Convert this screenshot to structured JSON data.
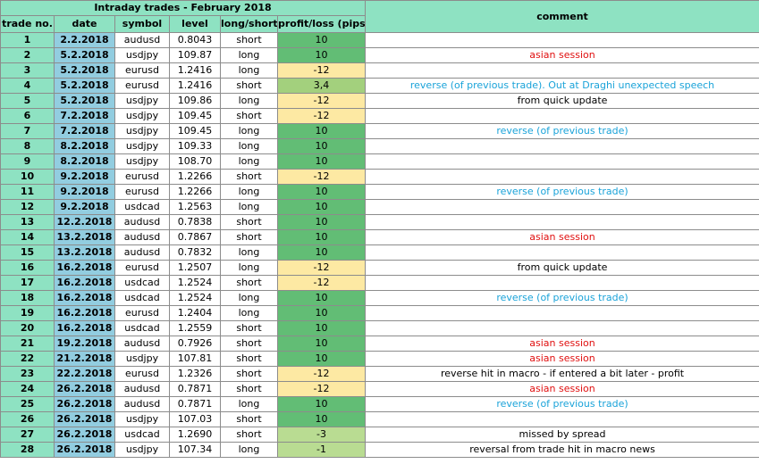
{
  "title": "Intraday trades - February 2018",
  "headers": {
    "trade_no": "trade no.",
    "date": "date",
    "symbol": "symbol",
    "level": "level",
    "long_short": "long/short",
    "profit_loss": "profit/loss (pips)",
    "comment": "comment"
  },
  "colors": {
    "header_bg": "#8ee2c2",
    "date_bg": "#92cde0",
    "win_bg": "#62bd75",
    "loss_bg": "#fde9a3",
    "partial_bg": "#a3d07d",
    "comment_red": "#e01010",
    "comment_blue": "#1aa3d9"
  },
  "rows": [
    {
      "no": "1",
      "date": "2.2.2018",
      "symbol": "audusd",
      "level": "0.8043",
      "side": "short",
      "pl": "10",
      "result": "win",
      "comment": "",
      "comment_color": "black"
    },
    {
      "no": "2",
      "date": "5.2.2018",
      "symbol": "usdjpy",
      "level": "109.87",
      "side": "long",
      "pl": "10",
      "result": "win",
      "comment": "asian session",
      "comment_color": "red"
    },
    {
      "no": "3",
      "date": "5.2.2018",
      "symbol": "eurusd",
      "level": "1.2416",
      "side": "long",
      "pl": "-12",
      "result": "loss",
      "comment": "",
      "comment_color": "black"
    },
    {
      "no": "4",
      "date": "5.2.2018",
      "symbol": "eurusd",
      "level": "1.2416",
      "side": "short",
      "pl": "3,4",
      "result": "partial",
      "comment": "reverse (of previous trade). Out at Draghi unexpected speech",
      "comment_color": "blue"
    },
    {
      "no": "5",
      "date": "5.2.2018",
      "symbol": "usdjpy",
      "level": "109.86",
      "side": "long",
      "pl": "-12",
      "result": "loss",
      "comment": "from quick update",
      "comment_color": "black"
    },
    {
      "no": "6",
      "date": "7.2.2018",
      "symbol": "usdjpy",
      "level": "109.45",
      "side": "short",
      "pl": "-12",
      "result": "loss",
      "comment": "",
      "comment_color": "black"
    },
    {
      "no": "7",
      "date": "7.2.2018",
      "symbol": "usdjpy",
      "level": "109.45",
      "side": "long",
      "pl": "10",
      "result": "win",
      "comment": "reverse (of previous trade)",
      "comment_color": "blue"
    },
    {
      "no": "8",
      "date": "8.2.2018",
      "symbol": "usdjpy",
      "level": "109.33",
      "side": "long",
      "pl": "10",
      "result": "win",
      "comment": "",
      "comment_color": "black"
    },
    {
      "no": "9",
      "date": "8.2.2018",
      "symbol": "usdjpy",
      "level": "108.70",
      "side": "long",
      "pl": "10",
      "result": "win",
      "comment": "",
      "comment_color": "black"
    },
    {
      "no": "10",
      "date": "9.2.2018",
      "symbol": "eurusd",
      "level": "1.2266",
      "side": "short",
      "pl": "-12",
      "result": "loss",
      "comment": "",
      "comment_color": "black"
    },
    {
      "no": "11",
      "date": "9.2.2018",
      "symbol": "eurusd",
      "level": "1.2266",
      "side": "long",
      "pl": "10",
      "result": "win",
      "comment": "reverse (of previous trade)",
      "comment_color": "blue"
    },
    {
      "no": "12",
      "date": "9.2.2018",
      "symbol": "usdcad",
      "level": "1.2563",
      "side": "long",
      "pl": "10",
      "result": "win",
      "comment": "",
      "comment_color": "black"
    },
    {
      "no": "13",
      "date": "12.2.2018",
      "symbol": "audusd",
      "level": "0.7838",
      "side": "short",
      "pl": "10",
      "result": "win",
      "comment": "",
      "comment_color": "black"
    },
    {
      "no": "14",
      "date": "13.2.2018",
      "symbol": "audusd",
      "level": "0.7867",
      "side": "short",
      "pl": "10",
      "result": "win",
      "comment": "asian session",
      "comment_color": "red"
    },
    {
      "no": "15",
      "date": "13.2.2018",
      "symbol": "audusd",
      "level": "0.7832",
      "side": "long",
      "pl": "10",
      "result": "win",
      "comment": "",
      "comment_color": "black"
    },
    {
      "no": "16",
      "date": "16.2.2018",
      "symbol": "eurusd",
      "level": "1.2507",
      "side": "long",
      "pl": "-12",
      "result": "loss",
      "comment": "from quick update",
      "comment_color": "black"
    },
    {
      "no": "17",
      "date": "16.2.2018",
      "symbol": "usdcad",
      "level": "1.2524",
      "side": "short",
      "pl": "-12",
      "result": "loss",
      "comment": "",
      "comment_color": "black"
    },
    {
      "no": "18",
      "date": "16.2.2018",
      "symbol": "usdcad",
      "level": "1.2524",
      "side": "long",
      "pl": "10",
      "result": "win",
      "comment": "reverse (of previous trade)",
      "comment_color": "blue"
    },
    {
      "no": "19",
      "date": "16.2.2018",
      "symbol": "eurusd",
      "level": "1.2404",
      "side": "long",
      "pl": "10",
      "result": "win",
      "comment": "",
      "comment_color": "black"
    },
    {
      "no": "20",
      "date": "16.2.2018",
      "symbol": "usdcad",
      "level": "1.2559",
      "side": "short",
      "pl": "10",
      "result": "win",
      "comment": "",
      "comment_color": "black"
    },
    {
      "no": "21",
      "date": "19.2.2018",
      "symbol": "audusd",
      "level": "0.7926",
      "side": "short",
      "pl": "10",
      "result": "win",
      "comment": "asian session",
      "comment_color": "red"
    },
    {
      "no": "22",
      "date": "21.2.2018",
      "symbol": "usdjpy",
      "level": "107.81",
      "side": "short",
      "pl": "10",
      "result": "win",
      "comment": "asian session",
      "comment_color": "red"
    },
    {
      "no": "23",
      "date": "22.2.2018",
      "symbol": "eurusd",
      "level": "1.2326",
      "side": "short",
      "pl": "-12",
      "result": "loss",
      "comment": "reverse hit in macro - if entered a bit later - profit",
      "comment_color": "black"
    },
    {
      "no": "24",
      "date": "26.2.2018",
      "symbol": "audusd",
      "level": "0.7871",
      "side": "short",
      "pl": "-12",
      "result": "loss",
      "comment": "asian session",
      "comment_color": "red"
    },
    {
      "no": "25",
      "date": "26.2.2018",
      "symbol": "audusd",
      "level": "0.7871",
      "side": "long",
      "pl": "10",
      "result": "win",
      "comment": "reverse (of previous trade)",
      "comment_color": "blue"
    },
    {
      "no": "26",
      "date": "26.2.2018",
      "symbol": "usdjpy",
      "level": "107.03",
      "side": "short",
      "pl": "10",
      "result": "win",
      "comment": "",
      "comment_color": "black"
    },
    {
      "no": "27",
      "date": "26.2.2018",
      "symbol": "usdcad",
      "level": "1.2690",
      "side": "short",
      "pl": "-3",
      "result": "small-loss",
      "comment": "missed by spread",
      "comment_color": "black"
    },
    {
      "no": "28",
      "date": "26.2.2018",
      "symbol": "usdjpy",
      "level": "107.34",
      "side": "long",
      "pl": "-1",
      "result": "small-loss",
      "comment": "reversal from trade hit in macro news",
      "comment_color": "black"
    }
  ]
}
